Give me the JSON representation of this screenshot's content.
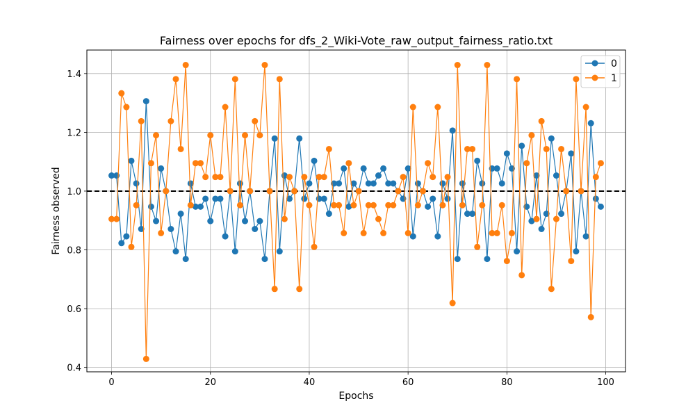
{
  "chart_data": {
    "type": "line",
    "title": "Fairness over epochs for dfs_2_Wiki-Vote_raw_output_fairness_ratio.txt",
    "xlabel": "Epochs",
    "ylabel": "Fairness observed",
    "xlim": [
      -5,
      104
    ],
    "ylim": [
      0.385,
      1.48
    ],
    "xticks": [
      0,
      20,
      40,
      60,
      80,
      100
    ],
    "yticks": [
      0.4,
      0.6,
      0.8,
      1.0,
      1.2,
      1.4
    ],
    "grid": true,
    "legend_position": "top-right",
    "reference_line": {
      "y": 1.0,
      "style": "dashed",
      "color": "#000000"
    },
    "series": [
      {
        "name": "0",
        "color": "#1f77b4",
        "values": [
          1.053,
          1.053,
          0.823,
          0.846,
          1.103,
          1.026,
          0.871,
          1.306,
          0.947,
          0.898,
          1.077,
          1.0,
          0.871,
          0.795,
          0.923,
          0.769,
          1.026,
          0.947,
          0.947,
          0.974,
          0.898,
          0.974,
          0.974,
          0.846,
          1.0,
          0.795,
          1.026,
          0.898,
          1.0,
          0.871,
          0.898,
          0.769,
          1.0,
          1.179,
          0.795,
          1.053,
          0.974,
          1.0,
          1.179,
          0.974,
          1.026,
          1.103,
          0.974,
          0.974,
          0.923,
          1.026,
          1.026,
          1.077,
          0.947,
          1.026,
          1.0,
          1.077,
          1.026,
          1.026,
          1.053,
          1.077,
          1.026,
          1.026,
          1.0,
          0.974,
          1.077,
          0.846,
          1.026,
          1.0,
          0.947,
          0.974,
          0.846,
          1.026,
          0.974,
          1.206,
          0.769,
          1.026,
          0.923,
          0.923,
          1.103,
          1.026,
          0.769,
          1.077,
          1.077,
          1.026,
          1.128,
          1.077,
          0.795,
          1.154,
          0.947,
          0.898,
          1.053,
          0.871,
          0.923,
          1.179,
          1.053,
          0.923,
          1.0,
          1.128,
          0.795,
          1.0,
          0.846,
          1.231,
          0.974,
          0.947
        ]
      },
      {
        "name": "1",
        "color": "#ff7f0e",
        "values": [
          0.905,
          0.905,
          1.333,
          1.286,
          0.81,
          0.952,
          1.238,
          0.429,
          1.095,
          1.19,
          0.857,
          1.0,
          1.238,
          1.381,
          1.143,
          1.429,
          0.952,
          1.095,
          1.095,
          1.048,
          1.19,
          1.048,
          1.048,
          1.286,
          1.0,
          1.381,
          0.952,
          1.19,
          1.0,
          1.238,
          1.19,
          1.429,
          1.0,
          0.667,
          1.381,
          0.905,
          1.048,
          1.0,
          0.667,
          1.048,
          0.952,
          0.81,
          1.048,
          1.048,
          1.143,
          0.952,
          0.952,
          0.857,
          1.095,
          0.952,
          1.0,
          0.857,
          0.952,
          0.952,
          0.905,
          0.857,
          0.952,
          0.952,
          1.0,
          1.048,
          0.857,
          1.286,
          0.952,
          1.0,
          1.095,
          1.048,
          1.286,
          0.952,
          1.048,
          0.619,
          1.429,
          0.952,
          1.143,
          1.143,
          0.81,
          0.952,
          1.429,
          0.857,
          0.857,
          0.952,
          0.762,
          0.857,
          1.381,
          0.714,
          1.095,
          1.19,
          0.905,
          1.238,
          1.143,
          0.667,
          0.905,
          1.143,
          1.0,
          0.762,
          1.381,
          1.0,
          1.286,
          0.571,
          1.048,
          1.095
        ]
      }
    ]
  }
}
